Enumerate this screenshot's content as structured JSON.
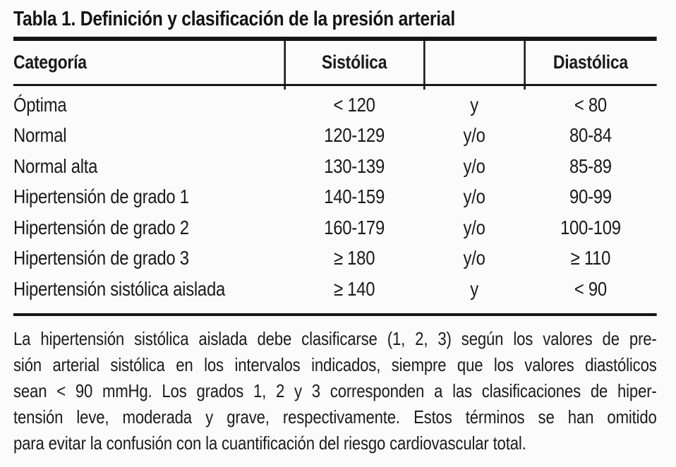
{
  "colors": {
    "background": "#fbfbfb",
    "text": "#1a1a1a",
    "rule": "#161616"
  },
  "table": {
    "title": "Tabla 1. Definición y clasificación de la presión arterial",
    "headers": [
      "Categoría",
      "Sistólica",
      "",
      "Diastólica"
    ],
    "rows": [
      {
        "categoria": "Óptima",
        "sistolica": "< 120",
        "conector": "y",
        "diastolica": "< 80"
      },
      {
        "categoria": "Normal",
        "sistolica": "120-129",
        "conector": "y/o",
        "diastolica": "80-84"
      },
      {
        "categoria": "Normal alta",
        "sistolica": "130-139",
        "conector": "y/o",
        "diastolica": "85-89"
      },
      {
        "categoria": "Hipertensión de grado 1",
        "sistolica": "140-159",
        "conector": "y/o",
        "diastolica": "90-99"
      },
      {
        "categoria": "Hipertensión de grado 2",
        "sistolica": "160-179",
        "conector": "y/o",
        "diastolica": "100-109"
      },
      {
        "categoria": "Hipertensión de grado 3",
        "sistolica": "≥ 180",
        "conector": "y/o",
        "diastolica": "≥ 110"
      },
      {
        "categoria": "Hipertensión sistólica aislada",
        "sistolica": "≥ 140",
        "conector": "y",
        "diastolica": "< 90"
      }
    ],
    "footnote_lines": [
      "La hipertensión sistólica aislada debe clasificarse (1, 2, 3) según los valores de pre-",
      "sión arterial sistólica en los intervalos indicados, siempre que los valores diastólicos",
      "sean < 90 mmHg. Los grados 1, 2 y 3 corresponden a las clasificaciones de hiper-",
      "tensión leve, moderada y grave, respectivamente. Estos términos se han omitido",
      "para evitar la confusión con la cuantificación del riesgo cardiovascular total."
    ]
  }
}
